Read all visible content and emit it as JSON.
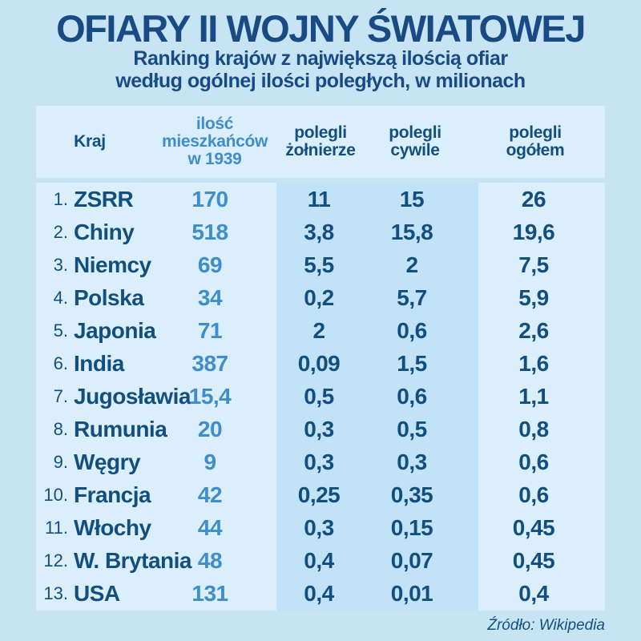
{
  "colors": {
    "background": "#c7e4f5",
    "band_light": "#daeefb",
    "band_middle": "#c2e2f8",
    "navy": "#134f7e",
    "title_navy": "#1a4a84",
    "accent_blue": "#3f8ecb"
  },
  "header": {
    "title": "OFIARY II WOJNY ŚWIATOWEJ",
    "subtitle_lines": [
      "Ranking krajów z największą ilością ofiar",
      "według ogólnej ilości poległych, w milionach"
    ]
  },
  "table": {
    "headers": {
      "kraj": "Kraj",
      "populacja": [
        "ilość",
        "mieszkańców",
        "w 1939"
      ],
      "zolnierze": [
        "polegli",
        "żołnierze"
      ],
      "cywile": [
        "polegli",
        "cywile"
      ],
      "ogolem": [
        "polegli",
        "ogółem"
      ]
    },
    "rows": [
      {
        "rank": "1.",
        "country": "ZSRR",
        "population": "170",
        "soldiers": "11",
        "civilians": "15",
        "total": "26"
      },
      {
        "rank": "2.",
        "country": "Chiny",
        "population": "518",
        "soldiers": "3,8",
        "civilians": "15,8",
        "total": "19,6"
      },
      {
        "rank": "3.",
        "country": "Niemcy",
        "population": "69",
        "soldiers": "5,5",
        "civilians": "2",
        "total": "7,5"
      },
      {
        "rank": "4.",
        "country": "Polska",
        "population": "34",
        "soldiers": "0,2",
        "civilians": "5,7",
        "total": "5,9"
      },
      {
        "rank": "5.",
        "country": "Japonia",
        "population": "71",
        "soldiers": "2",
        "civilians": "0,6",
        "total": "2,6"
      },
      {
        "rank": "6.",
        "country": "India",
        "population": "387",
        "soldiers": "0,09",
        "civilians": "1,5",
        "total": "1,6"
      },
      {
        "rank": "7.",
        "country": "Jugosławia",
        "population": "15,4",
        "soldiers": "0,5",
        "civilians": "0,6",
        "total": "1,1"
      },
      {
        "rank": "8.",
        "country": "Rumunia",
        "population": "20",
        "soldiers": "0,3",
        "civilians": "0,5",
        "total": "0,8"
      },
      {
        "rank": "9.",
        "country": "Węgry",
        "population": "9",
        "soldiers": "0,3",
        "civilians": "0,3",
        "total": "0,6"
      },
      {
        "rank": "10.",
        "country": "Francja",
        "population": "42",
        "soldiers": "0,25",
        "civilians": "0,35",
        "total": "0,6"
      },
      {
        "rank": "11.",
        "country": "Włochy",
        "population": "44",
        "soldiers": "0,3",
        "civilians": "0,15",
        "total": "0,45"
      },
      {
        "rank": "12.",
        "country": "W. Brytania",
        "population": "48",
        "soldiers": "0,4",
        "civilians": "0,07",
        "total": "0,45"
      },
      {
        "rank": "13.",
        "country": "USA",
        "population": "131",
        "soldiers": "0,4",
        "civilians": "0,01",
        "total": "0,4"
      }
    ]
  },
  "footer": {
    "source": "Źródło: Wikipedia"
  },
  "chart_data": {
    "type": "table",
    "title": "OFIARY II WOJNY ŚWIATOWEJ",
    "subtitle": "Ranking krajów z największą ilością ofiar według ogólnej ilości poległych, w milionach",
    "columns": [
      "Kraj",
      "ilość mieszkańców w 1939",
      "polegli żołnierze",
      "polegli cywile",
      "polegli ogółem"
    ],
    "units": "miliony",
    "rows": [
      [
        "ZSRR",
        170,
        11,
        15,
        26
      ],
      [
        "Chiny",
        518,
        3.8,
        15.8,
        19.6
      ],
      [
        "Niemcy",
        69,
        5.5,
        2,
        7.5
      ],
      [
        "Polska",
        34,
        0.2,
        5.7,
        5.9
      ],
      [
        "Japonia",
        71,
        2,
        0.6,
        2.6
      ],
      [
        "India",
        387,
        0.09,
        1.5,
        1.6
      ],
      [
        "Jugosławia",
        15.4,
        0.5,
        0.6,
        1.1
      ],
      [
        "Rumunia",
        20,
        0.3,
        0.5,
        0.8
      ],
      [
        "Węgry",
        9,
        0.3,
        0.3,
        0.6
      ],
      [
        "Francja",
        42,
        0.25,
        0.35,
        0.6
      ],
      [
        "Włochy",
        44,
        0.3,
        0.15,
        0.45
      ],
      [
        "W. Brytania",
        48,
        0.4,
        0.07,
        0.45
      ],
      [
        "USA",
        131,
        0.4,
        0.01,
        0.4
      ]
    ],
    "source": "Wikipedia"
  }
}
